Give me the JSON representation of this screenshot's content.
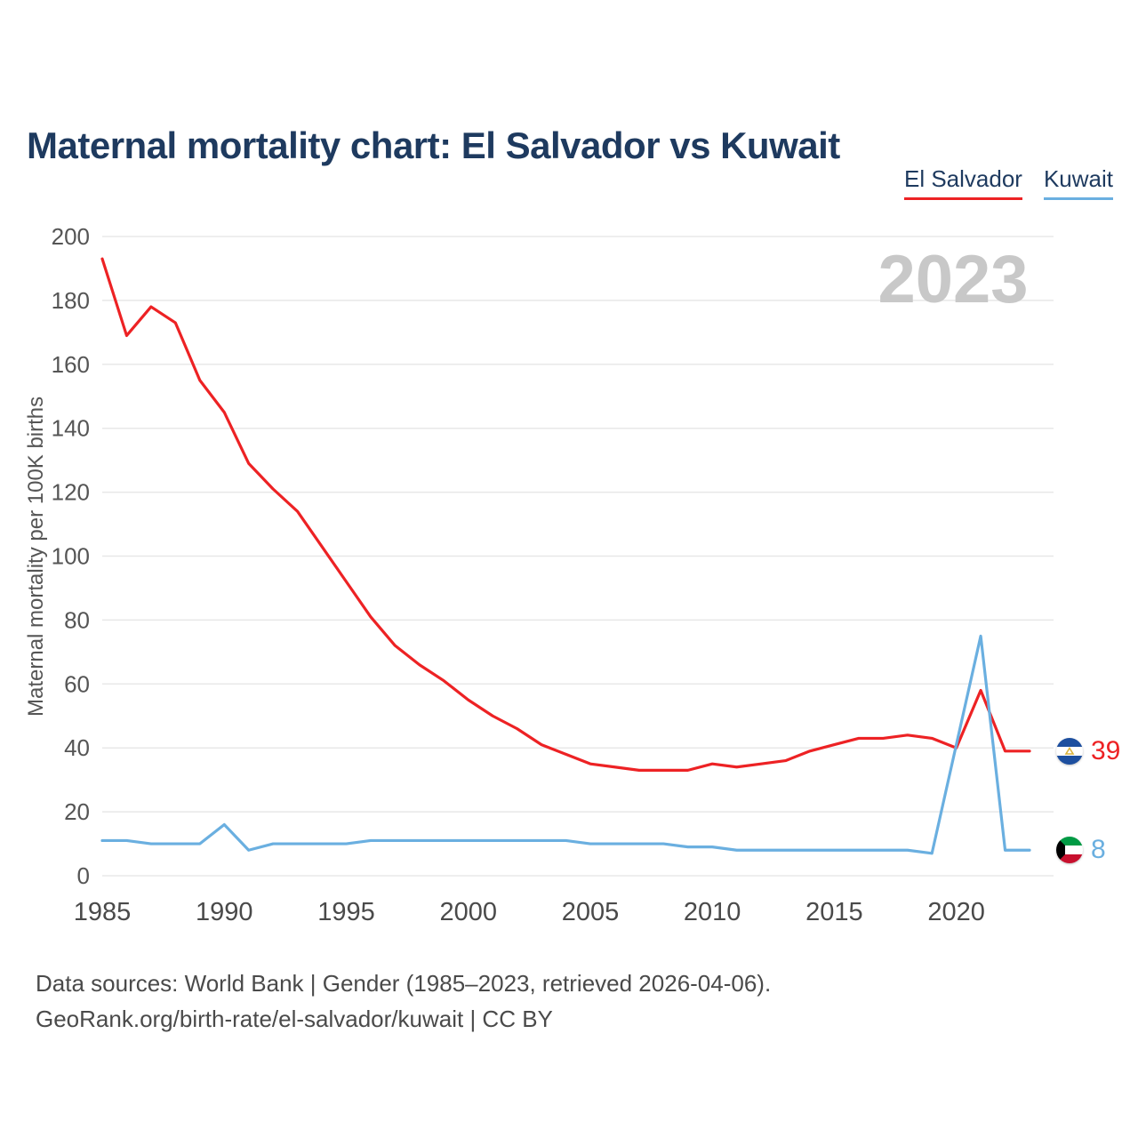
{
  "title": "Maternal mortality chart: El Salvador vs Kuwait",
  "watermark": "2023",
  "legend": [
    {
      "label": "El Salvador",
      "color": "#ed2224"
    },
    {
      "label": "Kuwait",
      "color": "#6aafe0"
    }
  ],
  "y_axis_title": "Maternal mortality per 100K births",
  "end_labels": [
    {
      "country": "El Salvador",
      "value": 39,
      "flag_icon": "el-salvador-flag-icon"
    },
    {
      "country": "Kuwait",
      "value": 8,
      "flag_icon": "kuwait-flag-icon"
    }
  ],
  "footer": {
    "line1": "Data sources: World Bank | Gender (1985–2023, retrieved 2026-04-06).",
    "line2": "GeoRank.org/birth-rate/el-salvador/kuwait | CC BY"
  },
  "chart_data": {
    "type": "line",
    "title": "Maternal mortality chart: El Salvador vs Kuwait",
    "xlabel": "",
    "ylabel": "Maternal mortality per 100K births",
    "x": [
      1985,
      1986,
      1987,
      1988,
      1989,
      1990,
      1991,
      1992,
      1993,
      1994,
      1995,
      1996,
      1997,
      1998,
      1999,
      2000,
      2001,
      2002,
      2003,
      2004,
      2005,
      2006,
      2007,
      2008,
      2009,
      2010,
      2011,
      2012,
      2013,
      2014,
      2015,
      2016,
      2017,
      2018,
      2019,
      2020,
      2021,
      2022,
      2023
    ],
    "series": [
      {
        "name": "El Salvador",
        "color": "#ed2224",
        "values": [
          193,
          169,
          178,
          173,
          155,
          145,
          129,
          121,
          114,
          103,
          92,
          81,
          72,
          66,
          61,
          55,
          50,
          46,
          41,
          38,
          35,
          34,
          33,
          33,
          33,
          35,
          34,
          35,
          36,
          39,
          41,
          43,
          43,
          44,
          43,
          40,
          58,
          39,
          39
        ]
      },
      {
        "name": "Kuwait",
        "color": "#6aafe0",
        "values": [
          11,
          11,
          10,
          10,
          10,
          16,
          8,
          10,
          10,
          10,
          10,
          11,
          11,
          11,
          11,
          11,
          11,
          11,
          11,
          11,
          10,
          10,
          10,
          10,
          9,
          9,
          8,
          8,
          8,
          8,
          8,
          8,
          8,
          8,
          7,
          41,
          75,
          8,
          8
        ]
      }
    ],
    "ylim": [
      0,
      200
    ],
    "yticks": [
      0,
      20,
      40,
      60,
      80,
      100,
      120,
      140,
      160,
      180,
      200
    ],
    "xticks": [
      1985,
      1990,
      1995,
      2000,
      2005,
      2010,
      2015,
      2020
    ],
    "grid": true,
    "legend_position": "top-right"
  }
}
